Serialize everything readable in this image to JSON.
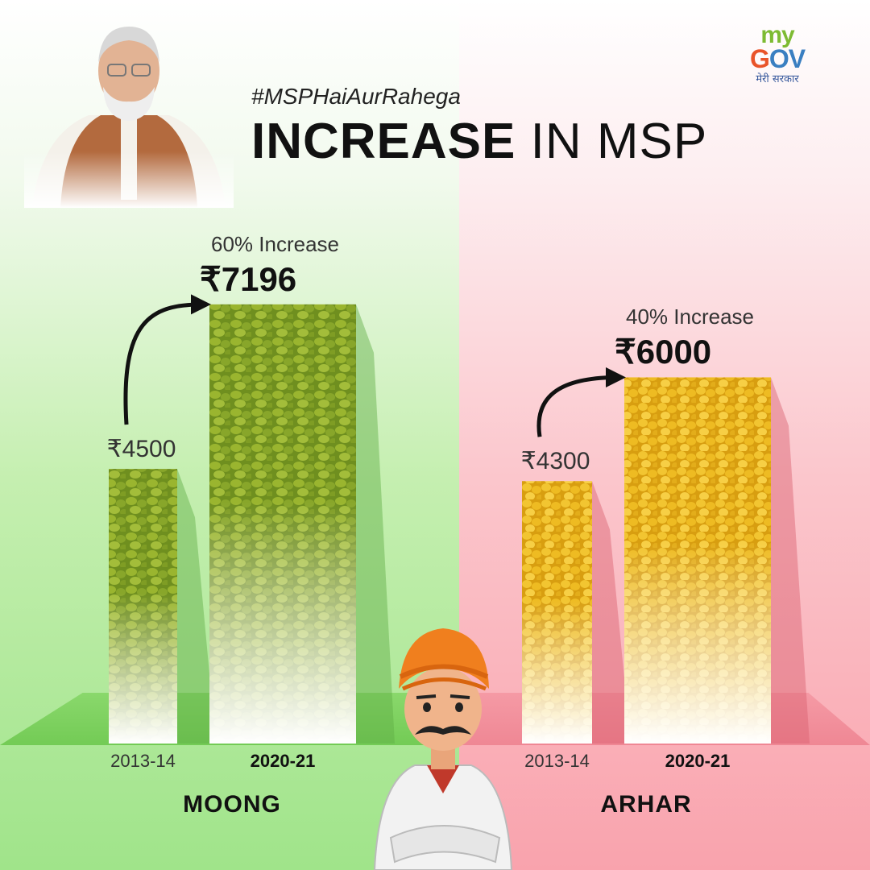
{
  "hashtag": "#MSPHaiAurRahega",
  "title": {
    "bold": "INCREASE",
    "rest": " IN MSP"
  },
  "logo": {
    "my": "my",
    "gov_g": "G",
    "gov_rest": "OV",
    "hindi": "मेरी सरकार"
  },
  "colors": {
    "moong": "#7e9a2a",
    "arhar": "#e9b51c",
    "left_bg": "#a0e48a",
    "right_bg": "#f9a3ad"
  },
  "chart_data": [
    {
      "type": "bar",
      "title": "MOONG",
      "categories": [
        "2013-14",
        "2020-21"
      ],
      "values": [
        4500,
        7196
      ],
      "value_labels": [
        "₹4500",
        "₹7196"
      ],
      "annotation": "60% Increase"
    },
    {
      "type": "bar",
      "title": "ARHAR",
      "categories": [
        "2013-14",
        "2020-21"
      ],
      "values": [
        4300,
        6000
      ],
      "value_labels": [
        "₹4300",
        "₹6000"
      ],
      "annotation": "40% Increase"
    }
  ]
}
